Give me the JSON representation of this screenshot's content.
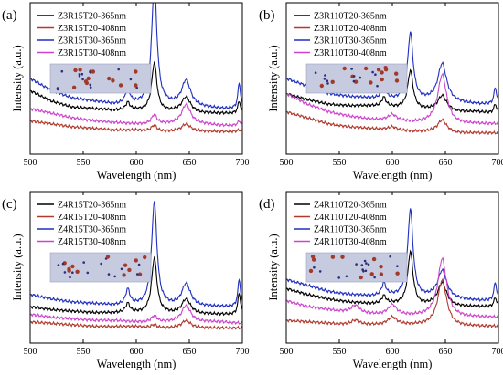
{
  "chart_data": [
    {
      "type": "line",
      "panel_label": "(a)",
      "xlabel": "Wavelength (nm)",
      "ylabel": "Intensity (a.u.)",
      "xlim": [
        500,
        700
      ],
      "xticks": [
        500,
        550,
        600,
        650,
        700
      ],
      "ylim": [
        0,
        1
      ],
      "legend_position": "top-left",
      "inset": "micrograph",
      "series": [
        {
          "name": "Z3R15T20-365nm",
          "color": "#000000",
          "base": [
            0.42,
            0.35,
            0.31,
            0.3,
            0.29,
            0.29,
            0.28,
            0.28,
            0.27,
            0.27,
            0.27
          ],
          "peaks": [
            [
              592,
              2.5,
              0.05
            ],
            [
              617,
              3,
              0.32
            ],
            [
              647,
              5,
              0.1
            ],
            [
              697,
              1.5,
              0.08
            ]
          ]
        },
        {
          "name": "Z3R15T20-408nm",
          "color": "#b03a2e",
          "base": [
            0.22,
            0.2,
            0.18,
            0.17,
            0.16,
            0.16,
            0.15,
            0.15,
            0.15,
            0.15,
            0.15
          ],
          "peaks": [
            [
              617,
              3,
              0.04
            ],
            [
              647,
              5,
              0.05
            ],
            [
              697,
              1.5,
              0.01
            ]
          ]
        },
        {
          "name": "Z3R15T30-365nm",
          "color": "#1f2fbf",
          "base": [
            0.5,
            0.42,
            0.37,
            0.35,
            0.33,
            0.33,
            0.33,
            0.32,
            0.31,
            0.3,
            0.3
          ],
          "peaks": [
            [
              592,
              2.5,
              0.1
            ],
            [
              617,
              3,
              0.79
            ],
            [
              647,
              5,
              0.17
            ],
            [
              697,
              1.5,
              0.17
            ]
          ]
        },
        {
          "name": "Z3R15T30-408nm",
          "color": "#cc44cc",
          "base": [
            0.3,
            0.27,
            0.24,
            0.22,
            0.21,
            0.2,
            0.2,
            0.2,
            0.2,
            0.19,
            0.19
          ],
          "peaks": [
            [
              617,
              3,
              0.06
            ],
            [
              647,
              5,
              0.13
            ],
            [
              697,
              1.5,
              0.03
            ]
          ]
        }
      ]
    },
    {
      "type": "line",
      "panel_label": "(b)",
      "xlabel": "Wavelength (nm)",
      "ylabel": "Intensity (a.u.)",
      "xlim": [
        500,
        700
      ],
      "xticks": [
        500,
        550,
        600,
        650,
        700
      ],
      "ylim": [
        0,
        1
      ],
      "legend_position": "top-left",
      "inset": "micrograph",
      "series": [
        {
          "name": "Z3R110T20-365nm",
          "color": "#000000",
          "base": [
            0.4,
            0.36,
            0.33,
            0.32,
            0.32,
            0.31,
            0.3,
            0.29,
            0.28,
            0.28,
            0.27
          ],
          "peaks": [
            [
              592,
              2.5,
              0.06
            ],
            [
              617,
              3,
              0.25
            ],
            [
              647,
              5,
              0.1
            ],
            [
              697,
              1.5,
              0.06
            ]
          ]
        },
        {
          "name": "Z3R110T20-408nm",
          "color": "#b03a2e",
          "base": [
            0.28,
            0.24,
            0.2,
            0.18,
            0.17,
            0.16,
            0.15,
            0.15,
            0.14,
            0.14,
            0.14
          ],
          "peaks": [
            [
              600,
              5,
              0.02
            ],
            [
              647,
              5,
              0.08
            ]
          ]
        },
        {
          "name": "Z3R110T30-365nm",
          "color": "#1f2fbf",
          "base": [
            0.5,
            0.45,
            0.4,
            0.38,
            0.37,
            0.36,
            0.36,
            0.35,
            0.34,
            0.33,
            0.33
          ],
          "peaks": [
            [
              592,
              2.5,
              0.08
            ],
            [
              617,
              3,
              0.44
            ],
            [
              647,
              5,
              0.25
            ],
            [
              697,
              1.5,
              0.11
            ]
          ]
        },
        {
          "name": "Z3R110T30-408nm",
          "color": "#cc44cc",
          "base": [
            0.4,
            0.33,
            0.28,
            0.25,
            0.23,
            0.22,
            0.21,
            0.21,
            0.2,
            0.2,
            0.2
          ],
          "peaks": [
            [
              600,
              5,
              0.04
            ],
            [
              647,
              5,
              0.32
            ]
          ]
        }
      ]
    },
    {
      "type": "line",
      "panel_label": "(c)",
      "xlabel": "Wavelength (nm)",
      "ylabel": "Intensity (a.u.)",
      "xlim": [
        500,
        700
      ],
      "xticks": [
        500,
        550,
        600,
        650,
        700
      ],
      "ylim": [
        0,
        1
      ],
      "legend_position": "top-left",
      "inset": "micrograph",
      "series": [
        {
          "name": "Z4R15T20-365nm",
          "color": "#000000",
          "base": [
            0.24,
            0.22,
            0.21,
            0.2,
            0.2,
            0.2,
            0.2,
            0.19,
            0.19,
            0.19,
            0.19
          ],
          "peaks": [
            [
              592,
              2.5,
              0.06
            ],
            [
              617,
              3,
              0.36
            ],
            [
              647,
              5,
              0.1
            ],
            [
              697,
              1.5,
              0.14
            ]
          ]
        },
        {
          "name": "Z4R15T20-408nm",
          "color": "#b03a2e",
          "base": [
            0.14,
            0.13,
            0.12,
            0.11,
            0.11,
            0.11,
            0.1,
            0.1,
            0.1,
            0.1,
            0.1
          ],
          "peaks": [
            [
              617,
              3,
              0.02
            ],
            [
              647,
              5,
              0.05
            ]
          ]
        },
        {
          "name": "Z4R15T30-365nm",
          "color": "#1f2fbf",
          "base": [
            0.32,
            0.29,
            0.27,
            0.26,
            0.25,
            0.25,
            0.25,
            0.24,
            0.24,
            0.24,
            0.24
          ],
          "peaks": [
            [
              592,
              2.5,
              0.1
            ],
            [
              617,
              3,
              0.68
            ],
            [
              647,
              5,
              0.15
            ],
            [
              697,
              1.5,
              0.18
            ]
          ]
        },
        {
          "name": "Z4R15T30-408nm",
          "color": "#cc44cc",
          "base": [
            0.19,
            0.17,
            0.16,
            0.15,
            0.15,
            0.14,
            0.14,
            0.14,
            0.14,
            0.14,
            0.13
          ],
          "peaks": [
            [
              617,
              3,
              0.04
            ],
            [
              647,
              5,
              0.11
            ]
          ]
        }
      ]
    },
    {
      "type": "line",
      "panel_label": "(d)",
      "xlabel": "Wavelength (nm)",
      "ylabel": "Intensity (a.u.)",
      "xlim": [
        500,
        700
      ],
      "xticks": [
        500,
        550,
        600,
        650,
        700
      ],
      "ylim": [
        0,
        1
      ],
      "legend_position": "top-left",
      "inset": "micrograph",
      "series": [
        {
          "name": "Z4R110T20-365nm",
          "color": "#000000",
          "base": [
            0.36,
            0.32,
            0.29,
            0.27,
            0.26,
            0.26,
            0.25,
            0.25,
            0.24,
            0.24,
            0.24
          ],
          "peaks": [
            [
              592,
              2.5,
              0.05
            ],
            [
              617,
              3,
              0.35
            ],
            [
              647,
              5,
              0.15
            ],
            [
              697,
              1.5,
              0.06
            ]
          ]
        },
        {
          "name": "Z4R110T20-408nm",
          "color": "#b03a2e",
          "base": [
            0.15,
            0.14,
            0.13,
            0.12,
            0.12,
            0.12,
            0.12,
            0.12,
            0.11,
            0.11,
            0.11
          ],
          "peaks": [
            [
              565,
              5,
              0.03
            ],
            [
              600,
              5,
              0.05
            ],
            [
              647,
              5,
              0.3
            ]
          ]
        },
        {
          "name": "Z4R110T30-365nm",
          "color": "#1f2fbf",
          "base": [
            0.42,
            0.38,
            0.34,
            0.32,
            0.31,
            0.31,
            0.3,
            0.3,
            0.29,
            0.28,
            0.28
          ],
          "peaks": [
            [
              592,
              2.5,
              0.08
            ],
            [
              617,
              3,
              0.58
            ],
            [
              647,
              5,
              0.18
            ],
            [
              697,
              1.5,
              0.12
            ]
          ]
        },
        {
          "name": "Z4R110T30-408nm",
          "color": "#cc44cc",
          "base": [
            0.28,
            0.24,
            0.22,
            0.2,
            0.19,
            0.18,
            0.18,
            0.18,
            0.17,
            0.17,
            0.17
          ],
          "peaks": [
            [
              565,
              5,
              0.05
            ],
            [
              600,
              5,
              0.07
            ],
            [
              647,
              5,
              0.38
            ]
          ]
        }
      ]
    }
  ]
}
